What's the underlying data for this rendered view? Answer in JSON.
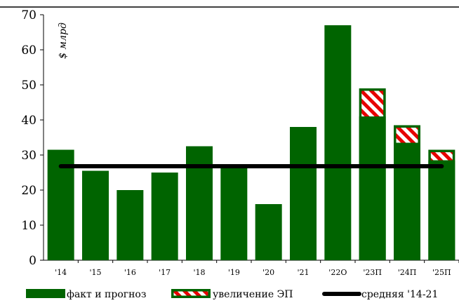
{
  "chart_data": {
    "type": "bar",
    "unit_label": "$ млрд",
    "categories": [
      "'14",
      "'15",
      "'16",
      "'17",
      "'18",
      "'19",
      "'20",
      "'21",
      "'22О",
      "'23П",
      "'24П",
      "'25П"
    ],
    "series": [
      {
        "name": "факт и прогноз",
        "values": [
          31.5,
          25.5,
          20,
          25,
          32.5,
          27,
          16,
          38,
          67,
          41,
          33.5,
          28.5
        ],
        "color": "#006400"
      },
      {
        "name": "увеличение ЭП",
        "values": [
          0,
          0,
          0,
          0,
          0,
          0,
          0,
          0,
          0,
          8,
          5,
          3
        ],
        "color": "#e60000",
        "pattern": "diagonal-stripes-red-white"
      }
    ],
    "reference_line": {
      "name": "средняя '14-21",
      "value": 26.8,
      "color": "#000000"
    },
    "ylim": [
      0,
      70
    ],
    "yticks": [
      0,
      10,
      20,
      30,
      40,
      50,
      60,
      70
    ],
    "grid": false,
    "legend_position": "bottom"
  }
}
